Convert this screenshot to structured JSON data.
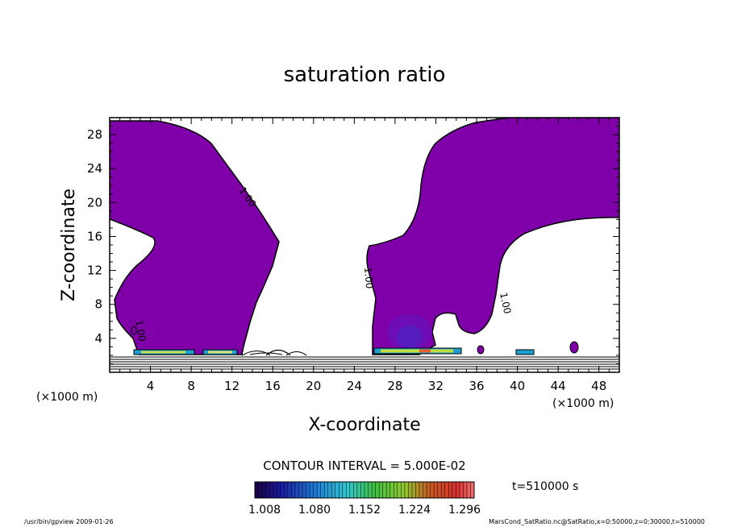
{
  "chart_data": {
    "type": "contour",
    "title": "saturation ratio",
    "xlabel": "X-coordinate",
    "ylabel": "Z-coordinate",
    "x_unit_label": "(×1000 m)",
    "y_unit_label": "(×1000 m)",
    "xlim": [
      0,
      50
    ],
    "ylim": [
      0,
      30
    ],
    "x_ticks": [
      "4",
      "8",
      "12",
      "16",
      "20",
      "24",
      "28",
      "32",
      "36",
      "40",
      "44",
      "48"
    ],
    "y_ticks": [
      "4",
      "8",
      "12",
      "16",
      "20",
      "24",
      "28"
    ],
    "contour_interval_text": "CONTOUR INTERVAL = 5.000E-02",
    "contour_labels": [
      "1.00",
      "1.00",
      "1.00",
      "1.00"
    ],
    "time_label": "t=510000 s",
    "colorbar_labels": [
      "1.008",
      "1.080",
      "1.152",
      "1.224",
      "1.296"
    ],
    "colorbar_range": [
      1.008,
      1.296
    ],
    "fill_color": "#7f00a8",
    "supersaturated_regions": [
      {
        "x": [
          0.5,
          16.5
        ],
        "z": [
          1.5,
          29.5
        ]
      },
      {
        "x": [
          25.5,
          50
        ],
        "z": [
          1.5,
          29.5
        ]
      }
    ],
    "footer_left": "/usr/bin/gpview  2009-01-26",
    "footer_right": "MarsCond_SatRatio.nc@SatRatio,x=0:50000,z=0:30000,t=510000"
  }
}
